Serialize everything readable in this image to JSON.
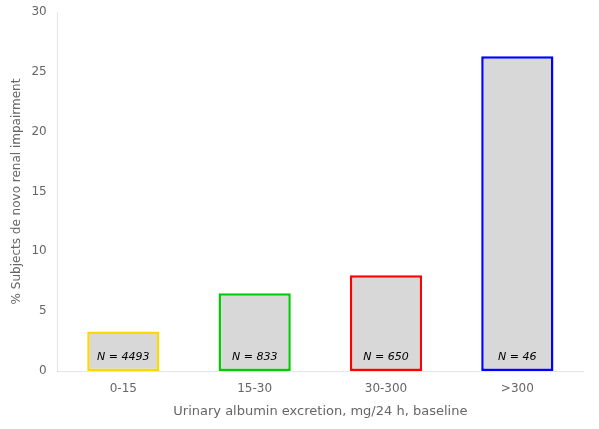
{
  "chart_data": {
    "type": "bar",
    "categories": [
      "0-15",
      "15-30",
      "30-300",
      ">300"
    ],
    "values": [
      3.3,
      6.5,
      8.0,
      26.3
    ],
    "color": "#d8d8d8",
    "colors": [
      "#FFD700",
      "#00CC00",
      "#FF0000",
      "#0000FF"
    ],
    "annotations": [
      "N = 4493",
      "N = 833",
      "N = 650",
      "N = 46"
    ],
    "ylabel": "% Subjects de novo renal impairment",
    "xlabel": "Urinary albumin excretion, mg/24 h, baseline",
    "ylim": [
      0,
      30
    ],
    "yticks": [
      0,
      5,
      10,
      15,
      20,
      25,
      30
    ],
    "grid": false
  }
}
